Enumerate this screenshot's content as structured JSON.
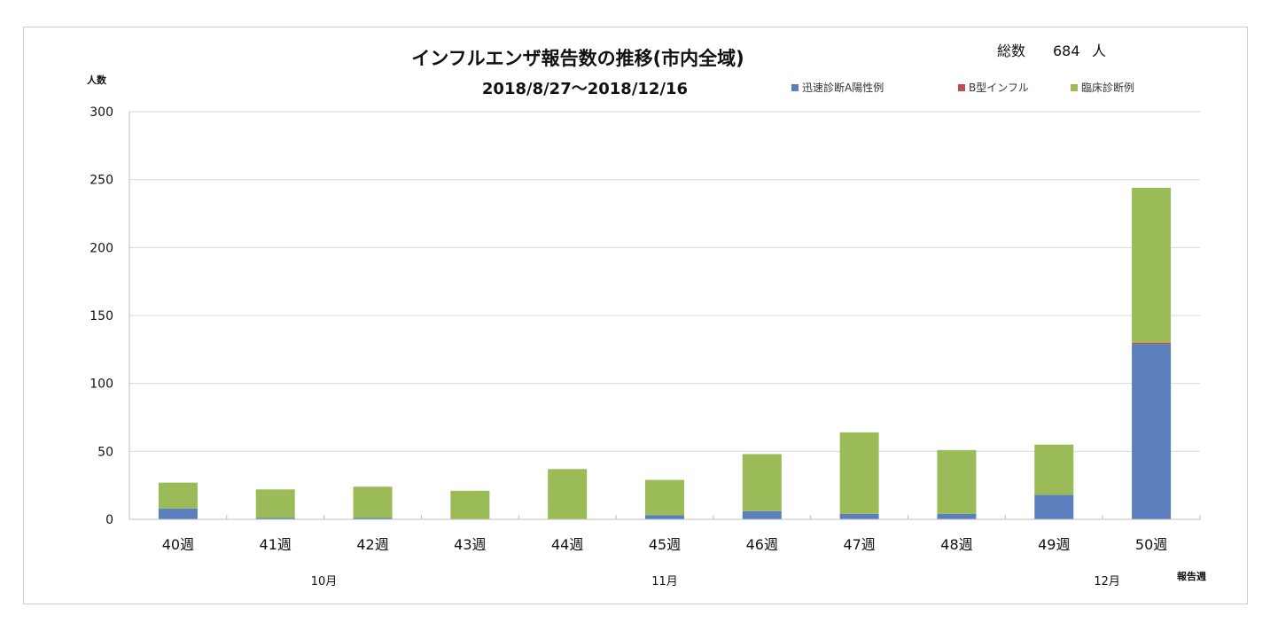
{
  "chart_data": {
    "type": "bar",
    "stacked": true,
    "title": "インフルエンザ報告数の推移(市内全域)",
    "subtitle": "2018/8/27〜2018/12/16",
    "total_label": "総数",
    "total_value": "684",
    "total_unit": "人",
    "ylabel": "人数",
    "xlabel": "報告週",
    "ylim": [
      0,
      300
    ],
    "yticks": [
      "0",
      "50",
      "100",
      "150",
      "200",
      "250",
      "300"
    ],
    "categories": [
      "40週",
      "41週",
      "42週",
      "43週",
      "44週",
      "45週",
      "46週",
      "47週",
      "48週",
      "49週",
      "50週"
    ],
    "month_labels": [
      {
        "label": "10月",
        "category": "42週"
      },
      {
        "label": "11月",
        "category": "45週"
      },
      {
        "label": "12月",
        "category": "50週"
      }
    ],
    "grid": true,
    "legend_position": "top-right",
    "series": [
      {
        "name": "迅速診断A陽性例",
        "color": "#5b7fbd",
        "values": [
          8,
          1,
          1,
          0,
          0,
          3,
          6,
          4,
          4,
          18,
          129
        ]
      },
      {
        "name": "B型インフル",
        "color": "#c0504d",
        "values": [
          0,
          0,
          0,
          0,
          0,
          0,
          0,
          0,
          0,
          0,
          1
        ]
      },
      {
        "name": "臨床診断例",
        "color": "#9bbb59",
        "values": [
          19,
          21,
          23,
          21,
          37,
          26,
          42,
          60,
          47,
          37,
          114
        ]
      }
    ]
  }
}
